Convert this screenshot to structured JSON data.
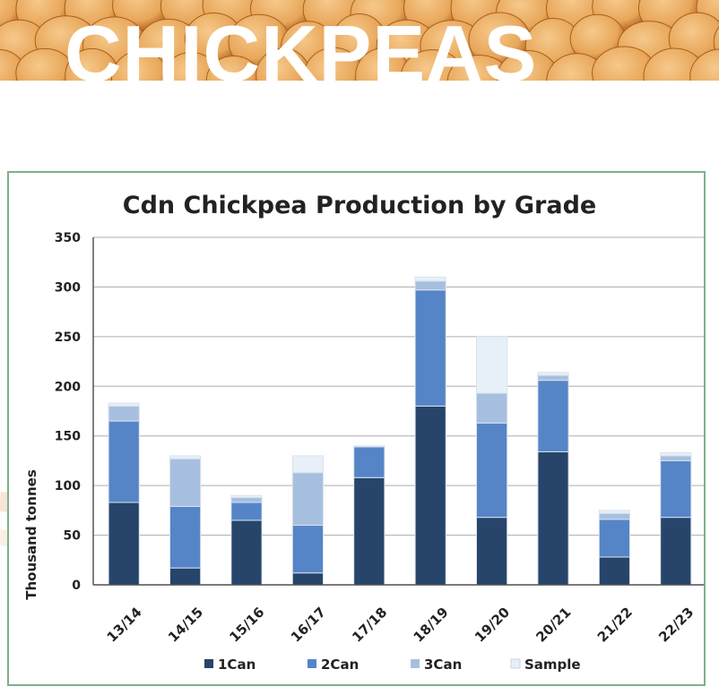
{
  "banner": {
    "title": "CHICKPEAS"
  },
  "colors": {
    "banner_bg": "#d9822b",
    "chickpea_fill": "#e8a75a",
    "deco_arc": "#f7d9c4",
    "frame_border": "#7fb089",
    "series": {
      "1Can": "#27446b",
      "2Can": "#5585c7",
      "3Can": "#a7bfdf",
      "Sample": "#e7eff8"
    }
  },
  "chart_data": {
    "type": "bar",
    "stacked": true,
    "title": "Cdn Chickpea Production by Grade",
    "xlabel": "",
    "ylabel": "Thousand tonnes",
    "ylim": [
      0,
      350
    ],
    "yticks": [
      "0",
      "50",
      "100",
      "150",
      "200",
      "250",
      "300",
      "350"
    ],
    "grid": true,
    "legend_position": "bottom",
    "categories": [
      "13/14",
      "14/15",
      "15/16",
      "16/17",
      "17/18",
      "18/19",
      "19/20",
      "20/21",
      "21/22",
      "22/23"
    ],
    "series": [
      {
        "name": "1Can",
        "values": [
          83,
          17,
          65,
          12,
          108,
          180,
          68,
          134,
          28,
          68
        ]
      },
      {
        "name": "2Can",
        "values": [
          82,
          62,
          18,
          48,
          31,
          117,
          95,
          72,
          38,
          57
        ]
      },
      {
        "name": "3Can",
        "values": [
          15,
          48,
          5,
          53,
          0,
          9,
          30,
          5,
          6,
          5
        ]
      },
      {
        "name": "Sample",
        "values": [
          3,
          3,
          2,
          17,
          1,
          4,
          57,
          3,
          3,
          3
        ]
      }
    ]
  }
}
